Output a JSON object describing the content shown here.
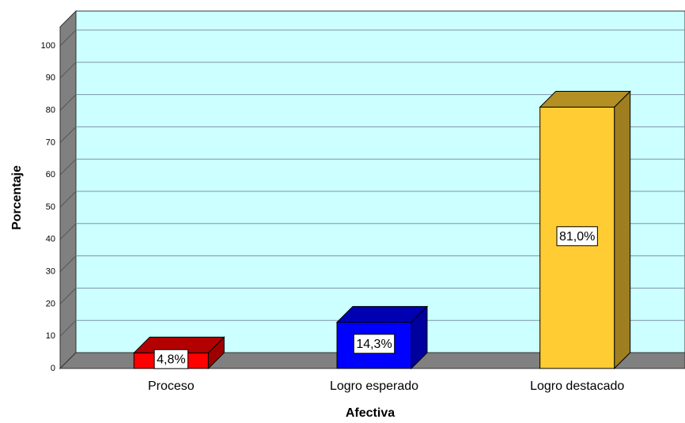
{
  "chart_data": {
    "type": "bar3d",
    "xlabel": "Afectiva",
    "ylabel": "Porcentaje",
    "categories": [
      "Proceso",
      "Logro esperado",
      "Logro destacado"
    ],
    "values": [
      4.8,
      14.3,
      81.0
    ],
    "value_labels": [
      "4,8%",
      "14,3%",
      "81,0%"
    ],
    "colors": [
      "#ff0000",
      "#0000ff",
      "#ffcc33"
    ],
    "ylim": [
      0,
      100
    ],
    "yticks": [
      0,
      10,
      20,
      30,
      40,
      50,
      60,
      70,
      80,
      90,
      100
    ],
    "grid": true
  }
}
